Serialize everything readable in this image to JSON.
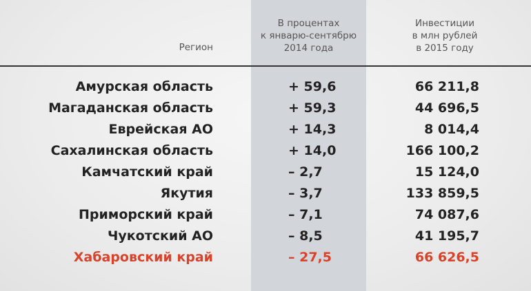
{
  "table": {
    "headers": [
      [
        "Регион"
      ],
      [
        "В процентах",
        "к январю-сентябрю",
        "2014 года"
      ],
      [
        "Инвестиции",
        "в млн рублей",
        "в 2015 году"
      ]
    ],
    "rows": [
      [
        "Амурская область",
        "+ 59,6",
        "66 211,8"
      ],
      [
        "Магаданская область",
        "+ 59,3",
        "44 696,5"
      ],
      [
        "Еврейская АО",
        "+ 14,3",
        "8 014,4"
      ],
      [
        "Сахалинская область",
        "+ 14,0",
        "166 100,2"
      ],
      [
        "Камчатский край",
        "– 2,7",
        "15 124,0"
      ],
      [
        "Якутия",
        "– 3,7",
        "133 859,5"
      ],
      [
        "Приморский край",
        "– 7,1",
        "74 087,6"
      ],
      [
        "Чукотский АО",
        "– 8,5",
        "41 195,7"
      ],
      [
        "Хабаровский край",
        "– 27,5",
        "66 626,5"
      ]
    ],
    "highlight": {
      "row": 8,
      "color": "#d8432b"
    }
  }
}
